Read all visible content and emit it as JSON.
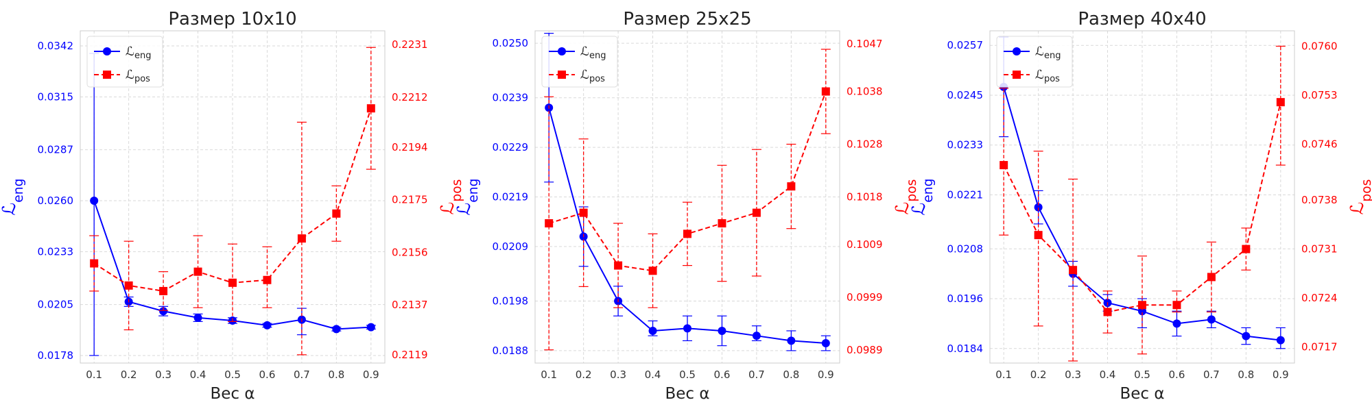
{
  "chart_data": [
    {
      "type": "line",
      "title": "Размер 10x10",
      "xlabel": "Вес α",
      "ylabel_left": "ℒeng",
      "ylabel_right": "ℒpos",
      "x": [
        0.1,
        0.2,
        0.3,
        0.4,
        0.5,
        0.6,
        0.7,
        0.8,
        0.9
      ],
      "x_ticks": [
        "0.1",
        "0.2",
        "0.3",
        "0.4",
        "0.5",
        "0.6",
        "0.7",
        "0.8",
        "0.9"
      ],
      "left_ticks": [
        "0.0178",
        "0.0205",
        "0.0233",
        "0.0260",
        "0.0287",
        "0.0315",
        "0.0342"
      ],
      "right_ticks": [
        "0.2119",
        "0.2137",
        "0.2156",
        "0.2175",
        "0.2194",
        "0.2212",
        "0.2231"
      ],
      "ylim_left": [
        0.0174,
        0.035
      ],
      "ylim_right": [
        0.2116,
        0.2236
      ],
      "grid": true,
      "legend_position": "top-left",
      "series": [
        {
          "name": "ℒeng",
          "axis": "left",
          "color": "#0000ff",
          "marker": "circle",
          "linestyle": "solid",
          "values": [
            0.026,
            0.02065,
            0.02015,
            0.0198,
            0.01965,
            0.0194,
            0.0197,
            0.0192,
            0.0193
          ],
          "err_low": [
            0.0178,
            0.0204,
            0.0199,
            0.0196,
            0.0195,
            0.0193,
            0.0189,
            0.0191,
            0.0192
          ],
          "err_high": [
            0.0338,
            0.0209,
            0.0204,
            0.02,
            0.0198,
            0.0195,
            0.0203,
            0.0193,
            0.0194
          ]
        },
        {
          "name": "ℒpos",
          "axis": "right",
          "color": "#ff0000",
          "marker": "square",
          "linestyle": "dashed",
          "values": [
            0.2152,
            0.2144,
            0.2142,
            0.2149,
            0.2145,
            0.2146,
            0.2161,
            0.217,
            0.2208
          ],
          "err_low": [
            0.2142,
            0.2128,
            0.2135,
            0.2136,
            0.2131,
            0.2136,
            0.2119,
            0.216,
            0.2186
          ],
          "err_high": [
            0.2162,
            0.216,
            0.2149,
            0.2162,
            0.2159,
            0.2158,
            0.2203,
            0.218,
            0.223
          ]
        }
      ]
    },
    {
      "type": "line",
      "title": "Размер 25x25",
      "xlabel": "Вес α",
      "ylabel_left": "ℒeng",
      "ylabel_right": "ℒpos",
      "x": [
        0.1,
        0.2,
        0.3,
        0.4,
        0.5,
        0.6,
        0.7,
        0.8,
        0.9
      ],
      "x_ticks": [
        "0.1",
        "0.2",
        "0.3",
        "0.4",
        "0.5",
        "0.6",
        "0.7",
        "0.8",
        "0.9"
      ],
      "left_ticks": [
        "0.0188",
        "0.0198",
        "0.0209",
        "0.0219",
        "0.0229",
        "0.0239",
        "0.0250"
      ],
      "right_ticks": [
        "0.0989",
        "0.0999",
        "0.1009",
        "0.1018",
        "0.1028",
        "0.1038",
        "0.1047"
      ],
      "ylim_left": [
        0.01855,
        0.02525
      ],
      "ylim_right": [
        0.09865,
        0.10495
      ],
      "grid": true,
      "legend_position": "top-left",
      "series": [
        {
          "name": "ℒeng",
          "axis": "left",
          "color": "#0000ff",
          "marker": "circle",
          "linestyle": "solid",
          "values": [
            0.0237,
            0.0211,
            0.0198,
            0.0192,
            0.01925,
            0.0192,
            0.0191,
            0.019,
            0.01895
          ],
          "err_low": [
            0.0222,
            0.0205,
            0.0195,
            0.0191,
            0.019,
            0.0189,
            0.019,
            0.0188,
            0.0188
          ],
          "err_high": [
            0.0252,
            0.0217,
            0.0201,
            0.0194,
            0.0195,
            0.0195,
            0.0193,
            0.0192,
            0.0191
          ]
        },
        {
          "name": "ℒpos",
          "axis": "right",
          "color": "#ff0000",
          "marker": "square",
          "linestyle": "dashed",
          "values": [
            0.1013,
            0.1015,
            0.1005,
            0.1004,
            0.1011,
            0.1013,
            0.1015,
            0.102,
            0.1038
          ],
          "err_low": [
            0.0989,
            0.1001,
            0.0997,
            0.0997,
            0.1005,
            0.1002,
            0.1003,
            0.1012,
            0.103
          ],
          "err_high": [
            0.1037,
            0.1029,
            0.1013,
            0.1011,
            0.1017,
            0.1024,
            0.1027,
            0.1028,
            0.1046
          ]
        }
      ]
    },
    {
      "type": "line",
      "title": "Размер 40x40",
      "xlabel": "Вес α",
      "ylabel_left": "ℒeng",
      "ylabel_right": "ℒpos",
      "x": [
        0.1,
        0.2,
        0.3,
        0.4,
        0.5,
        0.6,
        0.7,
        0.8,
        0.9
      ],
      "x_ticks": [
        "0.1",
        "0.2",
        "0.3",
        "0.4",
        "0.5",
        "0.6",
        "0.7",
        "0.8",
        "0.9"
      ],
      "left_ticks": [
        "0.0184",
        "0.0196",
        "0.0208",
        "0.0221",
        "0.0233",
        "0.0245",
        "0.0257"
      ],
      "right_ticks": [
        "0.0717",
        "0.0724",
        "0.0731",
        "0.0738",
        "0.0746",
        "0.0753",
        "0.0760"
      ],
      "ylim_left": [
        0.01805,
        0.02605
      ],
      "ylim_right": [
        0.07147,
        0.07622
      ],
      "grid": true,
      "legend_position": "top-left",
      "series": [
        {
          "name": "ℒeng",
          "axis": "left",
          "color": "#0000ff",
          "marker": "circle",
          "linestyle": "solid",
          "values": [
            0.0247,
            0.0218,
            0.0202,
            0.0195,
            0.0193,
            0.019,
            0.0191,
            0.0187,
            0.0186
          ],
          "err_low": [
            0.0235,
            0.0214,
            0.0199,
            0.0193,
            0.0189,
            0.0187,
            0.0189,
            0.0185,
            0.0184
          ],
          "err_high": [
            0.0259,
            0.0222,
            0.0205,
            0.0197,
            0.0196,
            0.0193,
            0.0193,
            0.0189,
            0.0189
          ]
        },
        {
          "name": "ℒpos",
          "axis": "right",
          "color": "#ff0000",
          "marker": "square",
          "linestyle": "dashed",
          "values": [
            0.0743,
            0.0733,
            0.0728,
            0.0722,
            0.0723,
            0.0723,
            0.0727,
            0.0731,
            0.0752
          ],
          "err_low": [
            0.0733,
            0.072,
            0.0715,
            0.0719,
            0.0716,
            0.0722,
            0.0722,
            0.0728,
            0.0743
          ],
          "err_high": [
            0.0754,
            0.0745,
            0.0741,
            0.0725,
            0.073,
            0.0725,
            0.0732,
            0.0734,
            0.076
          ]
        }
      ]
    }
  ]
}
